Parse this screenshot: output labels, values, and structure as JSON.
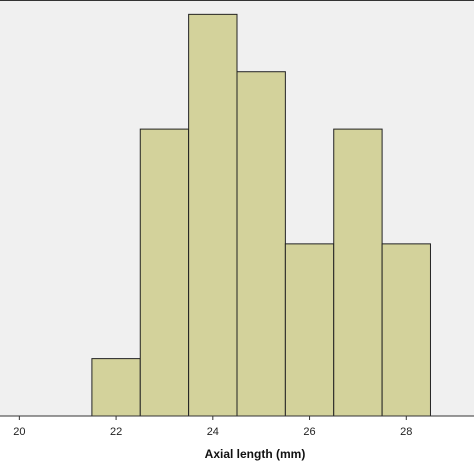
{
  "chart_data": {
    "type": "bar",
    "title": "",
    "xlabel": "Axial length (mm)",
    "ylabel": "",
    "bins": [
      {
        "x0": 21.5,
        "x1": 22.5,
        "count": 1
      },
      {
        "x0": 22.5,
        "x1": 23.5,
        "count": 5
      },
      {
        "x0": 23.5,
        "x1": 24.5,
        "count": 7
      },
      {
        "x0": 24.5,
        "x1": 25.5,
        "count": 6
      },
      {
        "x0": 25.5,
        "x1": 26.5,
        "count": 3
      },
      {
        "x0": 26.5,
        "x1": 27.5,
        "count": 5
      },
      {
        "x0": 27.5,
        "x1": 28.5,
        "count": 3
      }
    ],
    "x_ticks": [
      20,
      22,
      24,
      26,
      28
    ],
    "x_tick_labels": [
      "20",
      "22",
      "24",
      "26",
      "28"
    ],
    "xlim": [
      19.6,
      29.4
    ],
    "ylim": [
      0,
      7.25
    ],
    "grid": false,
    "colors": {
      "plot_background": "#f0f0f0",
      "bar_fill": "#d3d29b",
      "bar_stroke": "#222222",
      "frame": "#333333"
    }
  }
}
